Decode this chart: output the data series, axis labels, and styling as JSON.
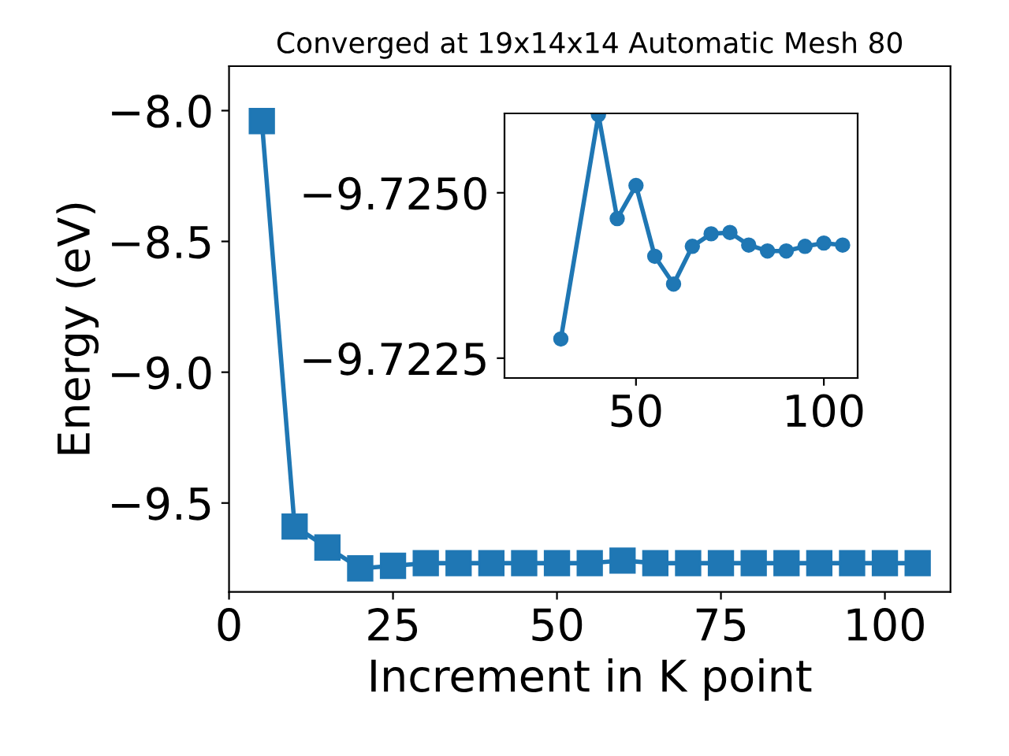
{
  "chart_data": [
    {
      "type": "line",
      "title": "Converged at 19x14x14 Automatic Mesh 80",
      "xlabel": "Increment in K point",
      "ylabel": "Energy (eV)",
      "x": [
        5,
        10,
        15,
        20,
        25,
        30,
        35,
        40,
        45,
        50,
        55,
        60,
        65,
        70,
        75,
        80,
        85,
        90,
        95,
        100,
        105
      ],
      "series": [
        {
          "color": "#1f77b4",
          "values": [
            -8.04,
            -9.59,
            -9.67,
            -9.75,
            -9.74,
            -9.73,
            -9.73,
            -9.73,
            -9.73,
            -9.73,
            -9.73,
            -9.72,
            -9.73,
            -9.73,
            -9.73,
            -9.73,
            -9.73,
            -9.73,
            -9.73,
            -9.73,
            -9.73
          ]
        }
      ],
      "xlim": [
        0,
        110
      ],
      "ylim": [
        -9.84,
        -7.83
      ],
      "xticks": [
        0,
        25,
        50,
        75,
        100
      ],
      "yticks": [
        {
          "value": -9.5,
          "label": "−9.5"
        },
        {
          "value": -9.0,
          "label": "−9.0"
        },
        {
          "value": -8.5,
          "label": "−8.5"
        },
        {
          "value": -8.0,
          "label": "−8.0"
        }
      ],
      "marker": "square",
      "line_style": "solid",
      "grid": false,
      "legend": false
    },
    {
      "type": "line",
      "x": [
        30,
        40,
        45,
        50,
        55,
        60,
        65,
        70,
        75,
        80,
        85,
        90,
        95,
        100,
        105
      ],
      "series": [
        {
          "color": "#1f77b4",
          "values": [
            -9.72279,
            -9.72618,
            -9.72461,
            -9.72511,
            -9.72404,
            -9.72362,
            -9.72419,
            -9.72438,
            -9.7244,
            -9.72421,
            -9.72412,
            -9.72412,
            -9.72419,
            -9.72424,
            -9.72421
          ]
        }
      ],
      "xlim": [
        15,
        109
      ],
      "ylim": [
        -9.7222,
        -9.7262
      ],
      "xticks": [
        50,
        100
      ],
      "yticks": [
        {
          "value": -9.725,
          "label": "−9.7250"
        },
        {
          "value": -9.7225,
          "label": "−9.7225"
        }
      ],
      "marker": "circle",
      "line_style": "solid",
      "grid": false,
      "legend": false
    }
  ]
}
